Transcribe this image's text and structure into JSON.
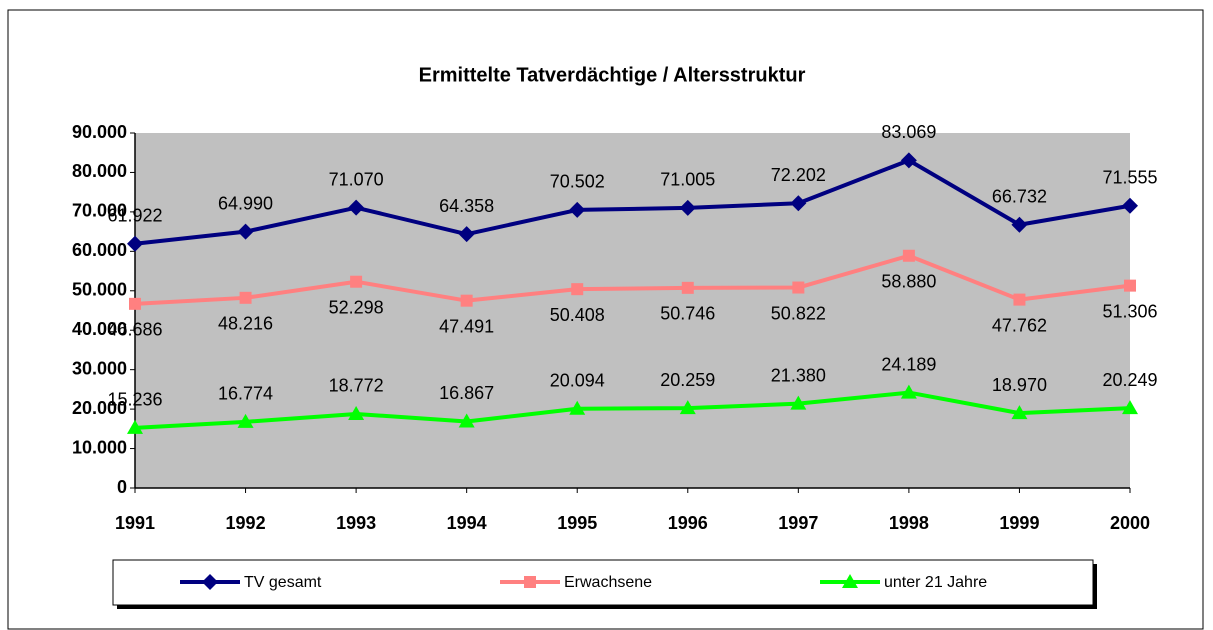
{
  "chart_data": {
    "type": "line",
    "title": "Ermittelte Tatverdächtige  / Altersstruktur",
    "categories": [
      "1991",
      "1992",
      "1993",
      "1994",
      "1995",
      "1996",
      "1997",
      "1998",
      "1999",
      "2000"
    ],
    "series": [
      {
        "name": "TV gesamt",
        "color": "#000080",
        "marker": "diamond",
        "label_position": "above",
        "values": [
          61922,
          64990,
          71070,
          64358,
          70502,
          71005,
          72202,
          83069,
          66732,
          71555
        ],
        "value_labels": [
          "61.922",
          "64.990",
          "71.070",
          "64.358",
          "70.502",
          "71.005",
          "72.202",
          "83.069",
          "66.732",
          "71.555"
        ]
      },
      {
        "name": "Erwachsene",
        "color": "#ff8080",
        "marker": "square",
        "label_position": "below",
        "values": [
          46686,
          48216,
          52298,
          47491,
          50408,
          50746,
          50822,
          58880,
          47762,
          51306
        ],
        "value_labels": [
          "46.686",
          "48.216",
          "52.298",
          "47.491",
          "50.408",
          "50.746",
          "50.822",
          "58.880",
          "47.762",
          "51.306"
        ]
      },
      {
        "name": "unter 21 Jahre",
        "color": "#00ff00",
        "marker": "triangle",
        "label_position": "above",
        "values": [
          15236,
          16774,
          18772,
          16867,
          20094,
          20259,
          21380,
          24189,
          18970,
          20249
        ],
        "value_labels": [
          "15.236",
          "16.774",
          "18.772",
          "16.867",
          "20.094",
          "20.259",
          "21.380",
          "24.189",
          "18.970",
          "20.249"
        ]
      }
    ],
    "ylim": [
      0,
      90000
    ],
    "yticks": [
      0,
      {
        "value": 10000,
        "label": "10.000"
      },
      {
        "value": 20000,
        "label": "20.000"
      },
      {
        "value": 30000,
        "label": "30.000"
      },
      {
        "value": 40000,
        "label": "40.000"
      },
      {
        "value": 50000,
        "label": "50.000"
      },
      {
        "value": 60000,
        "label": "60.000"
      },
      {
        "value": 70000,
        "label": "70.000"
      },
      {
        "value": 80000,
        "label": "80.000"
      },
      {
        "value": 90000,
        "label": "90.000"
      }
    ],
    "grid": false,
    "plot_background": "#c0c0c0",
    "legend": "bottom"
  }
}
